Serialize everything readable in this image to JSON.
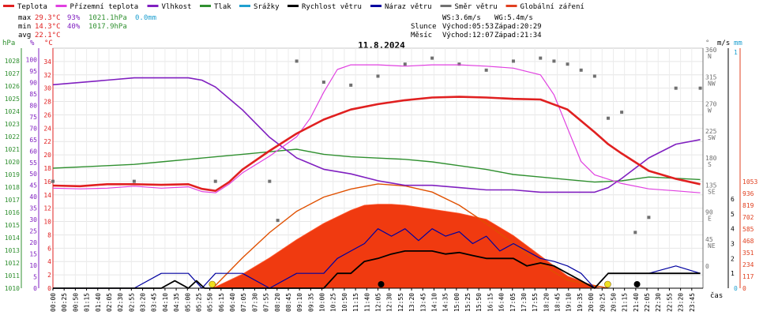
{
  "legend": [
    {
      "label": "Teplota",
      "color": "#e02020"
    },
    {
      "label": "Přízemní teplota",
      "color": "#e040e0"
    },
    {
      "label": "Vlhkost",
      "color": "#8020c0"
    },
    {
      "label": "Tlak",
      "color": "#309030"
    },
    {
      "label": "Srážky",
      "color": "#20a0d0"
    },
    {
      "label": "Rychlost větru",
      "color": "#000000"
    },
    {
      "label": "Náraz větru",
      "color": "#0000a0"
    },
    {
      "label": "Směr větru",
      "color": "#707070"
    },
    {
      "label": "Globální záření",
      "color": "#e04020"
    }
  ],
  "stats": {
    "max_label": "max",
    "max_temp": "29.3°C",
    "max_hum": "93%",
    "max_press": "1021.1hPa",
    "max_rain": "0.0mm",
    "min_label": "min",
    "min_temp": "14.3°C",
    "min_hum": "40%",
    "min_press": "1017.9hPa",
    "avg_label": "avg",
    "avg_temp": "22.1°C"
  },
  "wind_info": {
    "ws": "WS:3.6m/s",
    "wg": "WG:5.4m/s"
  },
  "sun_info": {
    "label": "Slunce",
    "rise": "Východ:05:53",
    "set": "Západ:20:29"
  },
  "moon_info": {
    "label": "Měsíc",
    "rise": "Východ:12:07",
    "set": "Západ:21:34"
  },
  "date": "11.8.2024",
  "x_unit": "čas",
  "axis_titles": {
    "hpa": "hPa",
    "pct": "%",
    "degc": "°C",
    "ms": "m/s",
    "mm": "mm",
    "deg": "°"
  },
  "chart_data": {
    "type": "line",
    "title": "11.8.2024",
    "x_ticks": [
      "00:00",
      "00:25",
      "00:50",
      "01:15",
      "01:40",
      "02:05",
      "02:30",
      "02:55",
      "03:20",
      "03:45",
      "04:10",
      "04:35",
      "05:00",
      "05:25",
      "05:50",
      "06:15",
      "06:40",
      "07:05",
      "07:30",
      "07:55",
      "08:20",
      "08:45",
      "09:10",
      "09:35",
      "10:00",
      "10:25",
      "10:50",
      "11:15",
      "11:40",
      "12:05",
      "12:30",
      "12:55",
      "13:20",
      "13:45",
      "14:10",
      "14:35",
      "15:00",
      "15:25",
      "15:50",
      "16:15",
      "16:40",
      "17:05",
      "17:30",
      "17:55",
      "18:20",
      "18:45",
      "19:10",
      "19:35",
      "20:00",
      "20:25",
      "20:50",
      "21:15",
      "21:40",
      "22:05",
      "22:30",
      "22:55",
      "23:20",
      "23:45"
    ],
    "axes": {
      "pressure_hpa": {
        "min": 1010,
        "max": 1029,
        "ticks": [
          1010,
          1011,
          1012,
          1013,
          1014,
          1015,
          1016,
          1017,
          1018,
          1019,
          1020,
          1021,
          1022,
          1023,
          1024,
          1025,
          1026,
          1027,
          1028
        ]
      },
      "humidity_pct": {
        "min": 0,
        "max": 105,
        "ticks": [
          0,
          5,
          10,
          15,
          20,
          25,
          30,
          35,
          40,
          45,
          50,
          55,
          60,
          65,
          70,
          75,
          80,
          85,
          90,
          95,
          100
        ]
      },
      "temperature_c": {
        "min": 0,
        "max": 36,
        "ticks": [
          0,
          2,
          4,
          6,
          8,
          10,
          12,
          14,
          16,
          18,
          20,
          22,
          24,
          26,
          28,
          30,
          32,
          34
        ]
      },
      "wind_ms": {
        "min": 0,
        "max": 6,
        "ticks": [
          1,
          2,
          3,
          4,
          5,
          6
        ]
      },
      "rain_mm": {
        "min": 0,
        "max": 1,
        "ticks": [
          0,
          1
        ]
      },
      "direction_deg": {
        "ticks": [
          {
            "v": "360",
            "d": "N"
          },
          {
            "v": "315",
            "d": "NW"
          },
          {
            "v": "270",
            "d": "W"
          },
          {
            "v": "225",
            "d": "SW"
          },
          {
            "v": "180",
            "d": "S"
          },
          {
            "v": "135",
            "d": "SE"
          },
          {
            "v": "90",
            "d": "E"
          },
          {
            "v": "45",
            "d": "NE"
          },
          {
            "v": "0",
            "d": ""
          }
        ]
      },
      "radiation_wm2": {
        "ticks": [
          0,
          117,
          234,
          351,
          468,
          585,
          702,
          819,
          936,
          1053
        ]
      }
    },
    "series": [
      {
        "name": "Teplota",
        "unit": "°C",
        "color": "#e02020",
        "hours": [
          0,
          1,
          2,
          3,
          4,
          5,
          5.5,
          6,
          6.5,
          7,
          8,
          9,
          10,
          11,
          12,
          13,
          14,
          15,
          16,
          17,
          18,
          19,
          20,
          20.5,
          21,
          22,
          23,
          23.9
        ],
        "values": [
          15.4,
          15.3,
          15.6,
          15.6,
          15.5,
          15.6,
          14.9,
          14.6,
          15.9,
          17.8,
          20.6,
          23.2,
          25.3,
          26.8,
          27.6,
          28.2,
          28.6,
          28.7,
          28.6,
          28.4,
          28.3,
          26.8,
          23.4,
          21.6,
          20.2,
          17.6,
          16.4,
          15.6
        ]
      },
      {
        "name": "Přízemní teplota",
        "unit": "°C",
        "color": "#e040e0",
        "hours": [
          0,
          1,
          2,
          3,
          4,
          5,
          5.5,
          6,
          6.5,
          7,
          8,
          9,
          9.5,
          10,
          10.5,
          11,
          12,
          13,
          14,
          15,
          16,
          17,
          18,
          18.5,
          19,
          19.5,
          20,
          21,
          22,
          23,
          23.9
        ],
        "values": [
          15.0,
          14.9,
          15.0,
          15.3,
          15.0,
          15.2,
          14.5,
          14.3,
          15.6,
          17.3,
          19.8,
          22.7,
          25.5,
          29.4,
          32.8,
          33.5,
          33.5,
          33.3,
          33.5,
          33.5,
          33.3,
          33.0,
          32.0,
          29.0,
          24.0,
          19.0,
          17.0,
          15.7,
          14.9,
          14.6,
          14.3
        ]
      },
      {
        "name": "Vlhkost",
        "unit": "%",
        "color": "#8020c0",
        "hours": [
          0,
          1,
          2,
          3,
          4,
          5,
          5.5,
          6,
          7,
          8,
          9,
          10,
          11,
          12,
          13,
          14,
          15,
          16,
          17,
          18,
          19,
          20,
          20.5,
          21,
          22,
          23,
          23.9
        ],
        "values": [
          89,
          90,
          91,
          92,
          92,
          92,
          91,
          88,
          78,
          66,
          57,
          52,
          50,
          47,
          45,
          45,
          44,
          43,
          43,
          42,
          42,
          42,
          44,
          48,
          57,
          63,
          65
        ]
      },
      {
        "name": "Tlak",
        "unit": "hPa",
        "color": "#309030",
        "hours": [
          0,
          1,
          2,
          3,
          4,
          5,
          6,
          7,
          8,
          9,
          10,
          11,
          12,
          13,
          14,
          15,
          16,
          17,
          18,
          19,
          20,
          21,
          22,
          23,
          23.9
        ],
        "values": [
          1019.5,
          1019.6,
          1019.7,
          1019.8,
          1020.0,
          1020.2,
          1020.4,
          1020.6,
          1020.8,
          1021.0,
          1020.6,
          1020.4,
          1020.3,
          1020.2,
          1020.0,
          1019.7,
          1019.4,
          1019.0,
          1018.8,
          1018.6,
          1018.4,
          1018.5,
          1018.8,
          1018.7,
          1018.6
        ]
      },
      {
        "name": "Rychlost větru",
        "unit": "m/s",
        "color": "#000000",
        "hours": [
          0,
          4,
          4.5,
          5,
          5.3,
          5.6,
          6,
          7,
          8,
          9,
          10,
          10.5,
          11,
          11.5,
          12,
          12.5,
          13,
          13.5,
          14,
          14.5,
          15,
          15.5,
          16,
          16.5,
          17,
          17.5,
          18,
          18.5,
          19,
          19.5,
          20,
          20.5,
          21,
          21.5,
          22,
          23,
          23.9
        ],
        "values": [
          0,
          0,
          0.5,
          0,
          0.5,
          0,
          0,
          0,
          0,
          0,
          0,
          1,
          1,
          1.8,
          2,
          2.3,
          2.5,
          2.5,
          2.5,
          2.3,
          2.4,
          2.2,
          2,
          2,
          2,
          1.5,
          1.7,
          1.5,
          1,
          0.5,
          0,
          1,
          1,
          1,
          1,
          1,
          1
        ]
      },
      {
        "name": "Náraz větru",
        "unit": "m/s",
        "color": "#0000a0",
        "hours": [
          0,
          1,
          2,
          3,
          4,
          5,
          5.5,
          6,
          7,
          8,
          9,
          10,
          10.5,
          11,
          11.5,
          12,
          12.5,
          13,
          13.5,
          14,
          14.5,
          15,
          15.5,
          16,
          16.5,
          17,
          17.5,
          18,
          18.5,
          19,
          19.5,
          20,
          20.5,
          21,
          21.5,
          22,
          23,
          23.9
        ],
        "values": [
          0,
          0,
          0,
          0,
          1,
          1,
          0,
          1,
          1,
          0,
          1,
          1,
          2,
          2.5,
          3,
          4,
          3.5,
          4,
          3.2,
          4,
          3.5,
          3.8,
          3,
          3.5,
          2.5,
          3,
          2.5,
          2,
          1.8,
          1.5,
          1,
          0,
          1,
          1,
          1,
          1,
          1.5,
          1
        ]
      },
      {
        "name": "Směr větru",
        "unit": "°",
        "color": "#707070",
        "hours": [
          0,
          3,
          6,
          8,
          8.3,
          9,
          10,
          11,
          12,
          13,
          14,
          15,
          16,
          17,
          18,
          18.5,
          19,
          19.5,
          20,
          20.5,
          21,
          21.5,
          22,
          23,
          23.9
        ],
        "values": [
          145,
          145,
          145,
          145,
          80,
          345,
          310,
          305,
          320,
          340,
          350,
          340,
          330,
          345,
          350,
          345,
          340,
          330,
          320,
          250,
          260,
          60,
          85,
          300,
          300
        ]
      },
      {
        "name": "Globální záření",
        "unit": "W/m²",
        "color": "#e04020",
        "hours": [
          5.9,
          7,
          8,
          9,
          10,
          11,
          11.5,
          12,
          12.5,
          13,
          13.5,
          14,
          15,
          16,
          17,
          18,
          19,
          20.2
        ],
        "values": [
          0,
          140,
          300,
          480,
          640,
          770,
          820,
          830,
          830,
          820,
          800,
          780,
          740,
          680,
          520,
          320,
          120,
          0
        ]
      },
      {
        "name": "Globální záření (teoretické)",
        "unit": "W/m²",
        "color": "#e05000",
        "hours": [
          5.9,
          7,
          8,
          9,
          10,
          11,
          12,
          13,
          14,
          15,
          16,
          17,
          18,
          19,
          20.5
        ],
        "values": [
          0,
          300,
          550,
          760,
          900,
          980,
          1030,
          1010,
          950,
          820,
          640,
          440,
          240,
          80,
          0
        ]
      }
    ],
    "markers": {
      "sunrise": "05:53",
      "sunset": "20:29",
      "moonrise": "12:07",
      "moonset": "21:34"
    }
  }
}
